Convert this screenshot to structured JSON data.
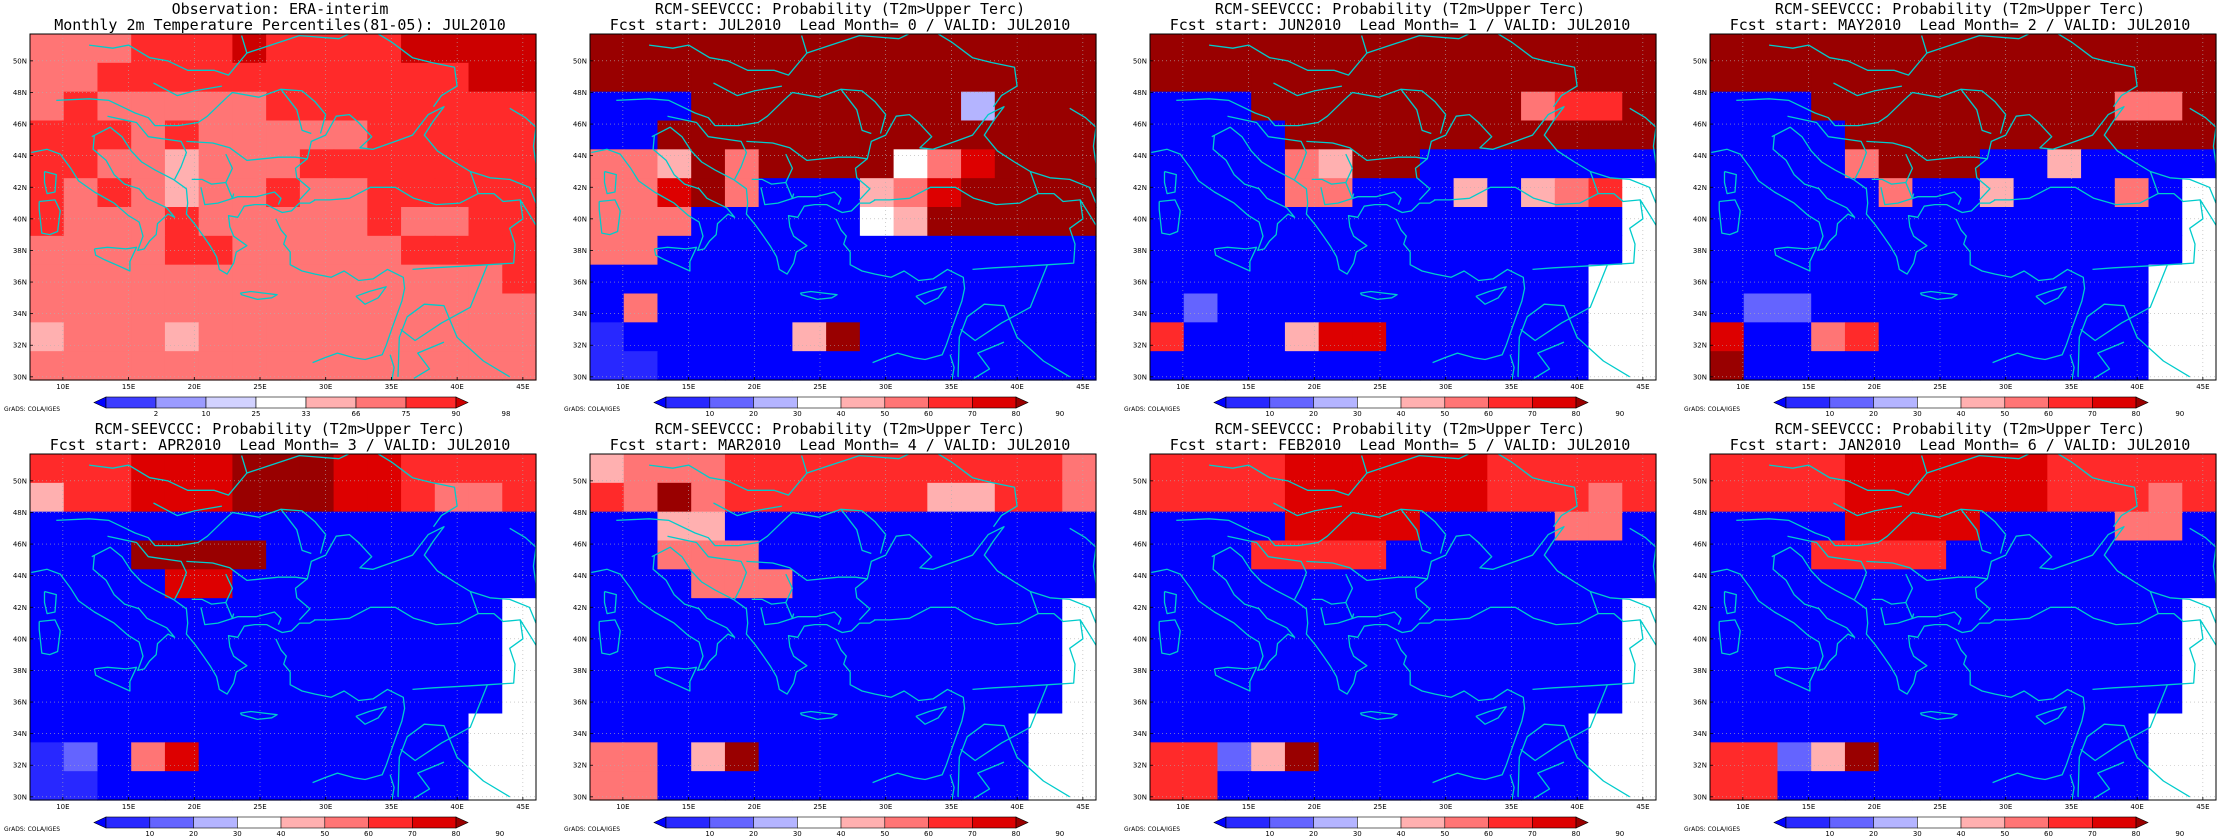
{
  "panels": [
    {
      "title1": "Observation: ERA-interim",
      "title2": "Monthly 2m Temperature Percentiles(81-05): JUL2010",
      "kind": "obs"
    },
    {
      "title1": "RCM-SEEVCCC: Probability (T2m>Upper Terc)",
      "title2": "Fcst start: JUL2010  Lead Month= 0 / VALID: JUL2010",
      "kind": "prob"
    },
    {
      "title1": "RCM-SEEVCCC: Probability (T2m>Upper Terc)",
      "title2": "Fcst start: JUN2010  Lead Month= 1 / VALID: JUL2010",
      "kind": "prob"
    },
    {
      "title1": "RCM-SEEVCCC: Probability (T2m>Upper Terc)",
      "title2": "Fcst start: MAY2010  Lead Month= 2 / VALID: JUL2010",
      "kind": "prob"
    },
    {
      "title1": "RCM-SEEVCCC: Probability (T2m>Upper Terc)",
      "title2": "Fcst start: APR2010  Lead Month= 3 / VALID: JUL2010",
      "kind": "prob"
    },
    {
      "title1": "RCM-SEEVCCC: Probability (T2m>Upper Terc)",
      "title2": "Fcst start: MAR2010  Lead Month= 4 / VALID: JUL2010",
      "kind": "prob"
    },
    {
      "title1": "RCM-SEEVCCC: Probability (T2m>Upper Terc)",
      "title2": "Fcst start: FEB2010  Lead Month= 5 / VALID: JUL2010",
      "kind": "prob"
    },
    {
      "title1": "RCM-SEEVCCC: Probability (T2m>Upper Terc)",
      "title2": "Fcst start: JAN2010  Lead Month= 6 / VALID: JUL2010",
      "kind": "prob"
    }
  ],
  "lat_labels": [
    "50N",
    "48N",
    "46N",
    "44N",
    "42N",
    "40N",
    "38N",
    "36N",
    "34N",
    "32N",
    "30N"
  ],
  "lon_labels": [
    "10E",
    "15E",
    "20E",
    "25E",
    "30E",
    "35E",
    "40E",
    "45E"
  ],
  "obs_colorbar": {
    "labels": [
      "2",
      "10",
      "25",
      "33",
      "66",
      "75",
      "90",
      "98"
    ],
    "colors": [
      "#0000ff",
      "#3c3cff",
      "#9b9bff",
      "#d2d2ff",
      "#ffffff",
      "#ffb0b0",
      "#ff7575",
      "#ff2a2a",
      "#cc0000"
    ]
  },
  "prob_colorbar": {
    "labels": [
      "10",
      "20",
      "30",
      "40",
      "50",
      "60",
      "70",
      "80",
      "90"
    ],
    "colors": [
      "#0000ff",
      "#2828ff",
      "#6464ff",
      "#b4b4ff",
      "#ffffff",
      "#ffb0b0",
      "#ff7575",
      "#ff2a2a",
      "#dd0000",
      "#990000"
    ]
  },
  "credit": "GrADS: COLA/IGES",
  "colors": {
    "coast": "#00cccc",
    "grid": "#b0b0b0"
  }
}
